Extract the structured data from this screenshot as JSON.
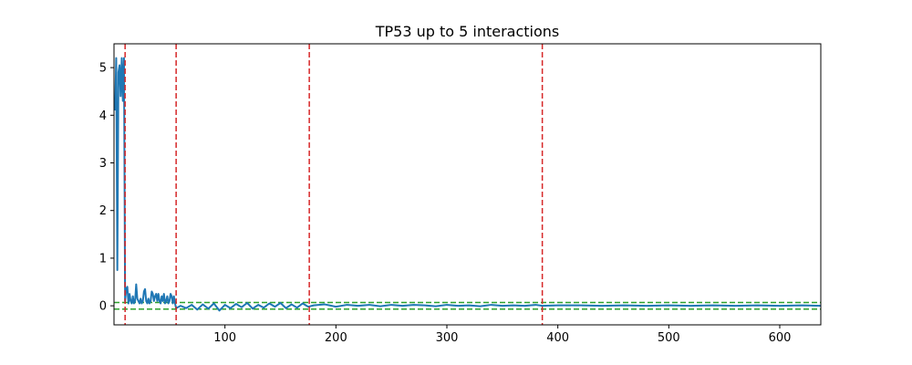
{
  "chart_data": {
    "type": "line",
    "title": "TP53 up to 5 interactions",
    "xlabel": "",
    "ylabel": "",
    "xlim": [
      0,
      637
    ],
    "ylim": [
      -0.4,
      5.5
    ],
    "xticks": [
      100,
      200,
      300,
      400,
      500,
      600
    ],
    "yticks": [
      0,
      1,
      2,
      3,
      4,
      5
    ],
    "grid": false,
    "legend": "none",
    "colors": {
      "series": "#1f77b4",
      "vertical_lines": "#d62728",
      "horizontal_lines": "#2ca02c"
    },
    "vertical_lines": [
      10,
      56,
      176,
      386
    ],
    "horizontal_lines": [
      0.07,
      -0.07
    ],
    "series": [
      {
        "x": [
          1,
          2,
          3,
          4,
          5,
          6,
          7,
          8,
          9,
          10,
          11,
          12,
          13,
          14,
          15,
          16,
          17,
          18,
          19,
          20,
          21,
          22,
          23,
          24,
          25,
          26,
          27,
          28,
          29,
          30,
          31,
          32,
          33,
          34,
          35,
          36,
          37,
          38,
          39,
          40,
          41,
          42,
          43,
          44,
          45,
          46,
          47,
          48,
          49,
          50,
          51,
          52,
          53,
          54,
          55,
          56,
          60,
          65,
          70,
          75,
          80,
          85,
          90,
          95,
          100,
          105,
          110,
          115,
          120,
          125,
          130,
          135,
          140,
          145,
          150,
          155,
          160,
          165,
          170,
          175,
          180,
          190,
          200,
          210,
          220,
          230,
          240,
          250,
          260,
          270,
          280,
          290,
          300,
          310,
          320,
          330,
          340,
          350,
          360,
          370,
          380,
          386,
          400,
          420,
          440,
          460,
          480,
          500,
          520,
          540,
          560,
          580,
          600,
          620,
          637
        ],
        "y": [
          4.1,
          5.2,
          0.75,
          4.9,
          5.05,
          4.4,
          5.2,
          4.3,
          5.2,
          0.1,
          0.35,
          0.4,
          0.05,
          0.25,
          0.1,
          0.05,
          0.2,
          0.05,
          0.1,
          0.45,
          0.15,
          0.1,
          0.05,
          0.15,
          0.05,
          0.1,
          0.3,
          0.35,
          0.1,
          0.05,
          0.15,
          0.05,
          0.1,
          0.3,
          0.25,
          0.1,
          0.2,
          0.25,
          0.1,
          0.25,
          0.1,
          0.05,
          0.2,
          0.1,
          0.25,
          0.05,
          0.1,
          0.2,
          0.05,
          0.1,
          0.25,
          0.2,
          0.05,
          0.2,
          0.05,
          -0.05,
          0.0,
          -0.05,
          0.02,
          -0.08,
          0.03,
          -0.06,
          0.05,
          -0.1,
          0.02,
          -0.05,
          0.04,
          -0.03,
          0.06,
          -0.06,
          0.02,
          -0.04,
          0.05,
          -0.02,
          0.06,
          -0.05,
          0.03,
          -0.04,
          0.05,
          -0.02,
          0.01,
          0.03,
          -0.02,
          0.02,
          0.0,
          0.02,
          -0.01,
          0.02,
          0.0,
          0.02,
          0.01,
          -0.01,
          0.02,
          0.0,
          0.01,
          -0.01,
          0.02,
          0.0,
          0.01,
          0.0,
          0.02,
          0.0,
          0.01,
          0.01,
          0.0,
          0.01,
          0.0,
          0.01,
          0.0,
          0.01,
          0.0,
          0.01,
          0.0,
          0.01,
          0.0
        ]
      }
    ]
  }
}
